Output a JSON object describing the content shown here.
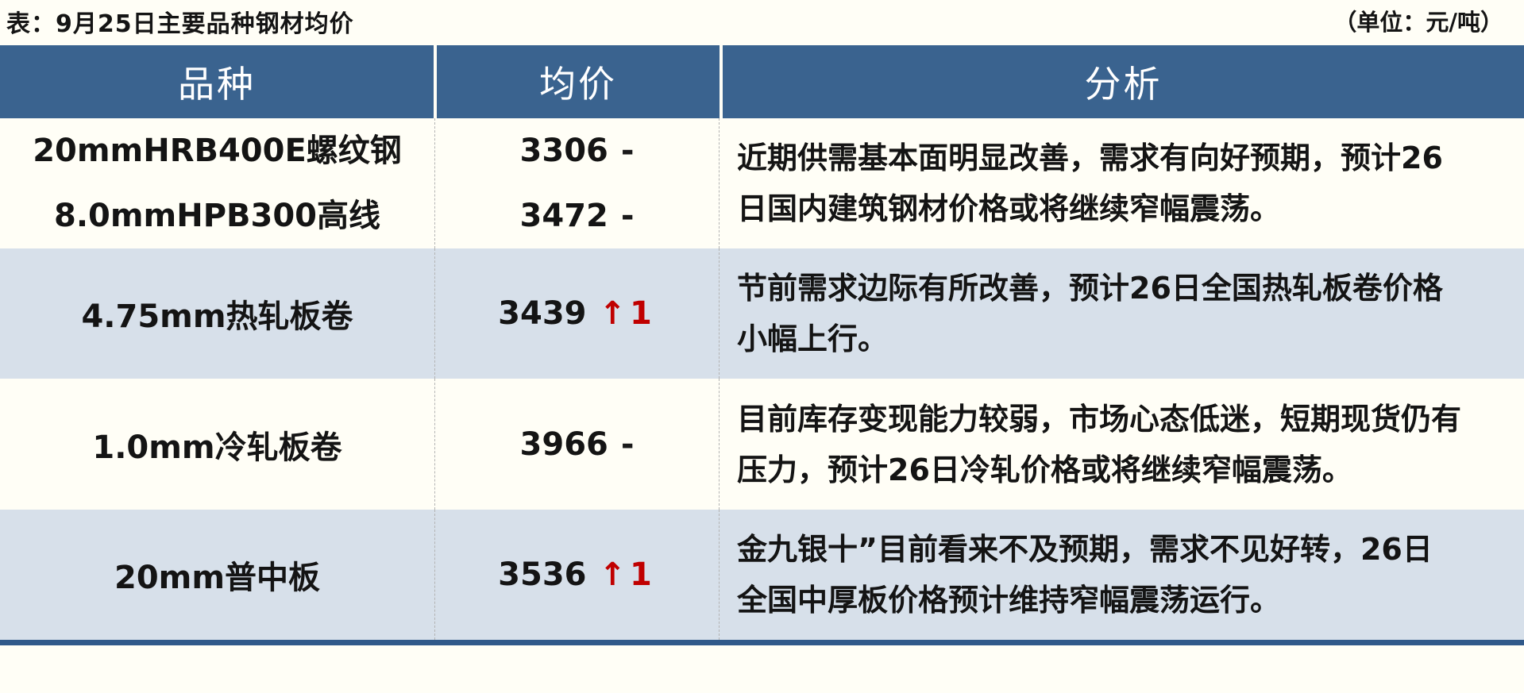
{
  "caption": {
    "title": "表：9月25日主要品种钢材均价",
    "unit": "（单位：元/吨）"
  },
  "table": {
    "headers": [
      "品种",
      "均价",
      "分析"
    ],
    "rows": [
      {
        "items": [
          {
            "name": "20mmHRB400E螺纹钢",
            "price": "3306",
            "change": "-",
            "direction": "flat"
          },
          {
            "name": "8.0mmHPB300高线",
            "price": "3472",
            "change": "-",
            "direction": "flat"
          }
        ],
        "analysis_lines": [
          "近期供需基本面明显改善，需求有向好预期，预计26",
          "日国内建筑钢材价格或将继续窄幅震荡。"
        ]
      },
      {
        "items": [
          {
            "name": "4.75mm热轧板卷",
            "price": "3439",
            "change": "↑1",
            "direction": "up"
          }
        ],
        "analysis_lines": [
          "节前需求边际有所改善，预计26日全国热轧板卷价格",
          "小幅上行。"
        ]
      },
      {
        "items": [
          {
            "name": "1.0mm冷轧板卷",
            "price": "3966",
            "change": "-",
            "direction": "flat"
          }
        ],
        "analysis_lines": [
          "目前库存变现能力较弱，市场心态低迷，短期现货仍有",
          "压力，预计26日冷轧价格或将继续窄幅震荡。"
        ]
      },
      {
        "items": [
          {
            "name": "20mm普中板",
            "price": "3536",
            "change": "↑1",
            "direction": "up"
          }
        ],
        "analysis_lines": [
          "金九银十”目前看来不及预期，需求不见好转，26日",
          "全国中厚板价格预计维持窄幅震荡运行。"
        ]
      }
    ]
  },
  "colors": {
    "header_bg": "#3A638F",
    "header_text": "#FFFFFF",
    "row_bg": "#FFFEF6",
    "row_alt_bg": "#D7E0EA",
    "bottom_rule": "#30598A",
    "up_red": "#C00000",
    "text": "#141414",
    "divider": "#B3B3B3"
  }
}
